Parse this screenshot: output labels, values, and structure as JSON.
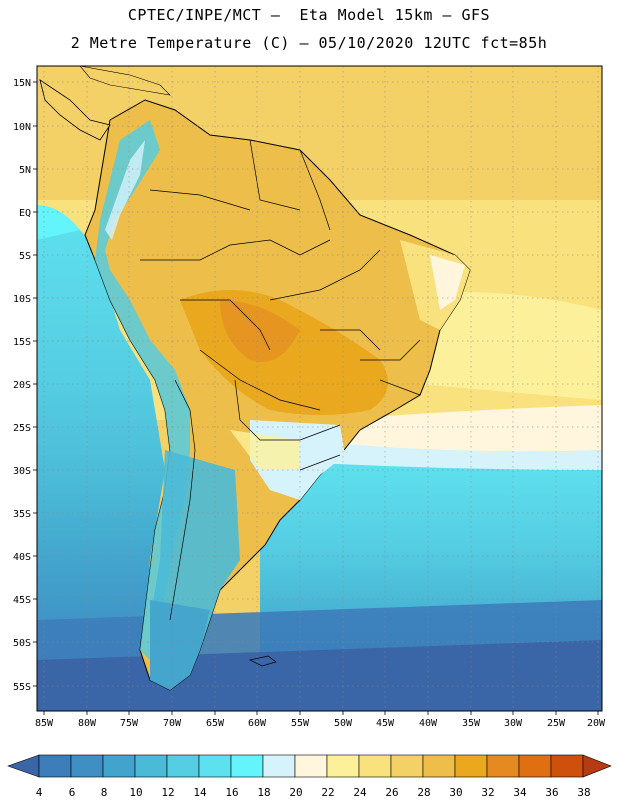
{
  "header": {
    "line1": "CPTEC/INPE/MCT –  Eta Model 15km – GFS",
    "line2": "2 Metre Temperature (C) – 05/10/2020 12UTC fct=85h"
  },
  "map": {
    "lat_labels": [
      "15N",
      "10N",
      "5N",
      "EQ",
      "5S",
      "10S",
      "15S",
      "20S",
      "25S",
      "30S",
      "35S",
      "40S",
      "45S",
      "50S",
      "55S"
    ],
    "lon_labels": [
      "85W",
      "80W",
      "75W",
      "70W",
      "65W",
      "60W",
      "55W",
      "50W",
      "45W",
      "40W",
      "35W",
      "30W",
      "25W",
      "20W"
    ],
    "grid": true
  },
  "colorbar": {
    "labels": [
      "4",
      "6",
      "8",
      "10",
      "12",
      "14",
      "16",
      "18",
      "20",
      "22",
      "24",
      "26",
      "28",
      "30",
      "32",
      "34",
      "36",
      "38"
    ],
    "colors": [
      "#3a66a8",
      "#3d7dba",
      "#3f8fc4",
      "#42a3cc",
      "#4bbad7",
      "#55cde2",
      "#5ee1ef",
      "#64f4fb",
      "#d6f3fb",
      "#fff6dd",
      "#fcf19a",
      "#f9e17d",
      "#f4d166",
      "#edbe4a",
      "#e9a81e",
      "#e48a21",
      "#e06f12",
      "#cf4f0c",
      "#b63b12"
    ],
    "left_arrow_color": "#3a66a8",
    "right_arrow_color": "#b63b12"
  }
}
